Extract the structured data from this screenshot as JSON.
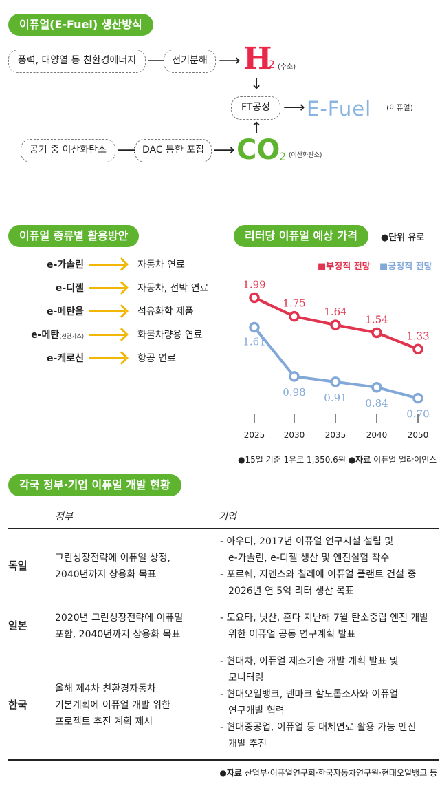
{
  "section1": {
    "title": "이퓨얼(E-Fuel) 생산방식",
    "box_energy": "풍력, 태양열 등 친환경에너지",
    "box_electrolysis": "전기분해",
    "h2_main": "H",
    "h2_sub": "2",
    "h2_label": "(수소)",
    "box_ft": "FT공정",
    "efuel_main": "E-Fuel",
    "efuel_label": "(이퓨얼)",
    "box_air": "공기 중 이산화탄소",
    "box_dac": "DAC 통한 포집",
    "co2_main": "CO",
    "co2_sub": "2",
    "co2_label": "(이산화탄소)"
  },
  "section2": {
    "title": "이퓨얼 종류별 활용방안",
    "items": [
      {
        "name": "e-가솔린",
        "name_small": "",
        "use": "자동차 연료"
      },
      {
        "name": "e-디젤",
        "name_small": "",
        "use": "자동차, 선박 연료"
      },
      {
        "name": "e-메탄올",
        "name_small": "",
        "use": "석유화학 제품"
      },
      {
        "name": "e-메탄",
        "name_small": "(천연가스)",
        "use": "화물차량용 연료"
      },
      {
        "name": "e-케로신",
        "name_small": "",
        "use": "항공 연료"
      }
    ]
  },
  "section3": {
    "title": "리터당 이퓨얼 예상 가격",
    "unit_prefix": "●단위",
    "unit_value": " 유로"
  },
  "chart_data": {
    "type": "line",
    "title": "리터당 이퓨얼 예상 가격",
    "x": [
      "2025",
      "2030",
      "2035",
      "2040",
      "2050"
    ],
    "series": [
      {
        "name": "부정적 전망",
        "values": [
          1.99,
          1.75,
          1.64,
          1.54,
          1.33
        ],
        "color": "#e0344f"
      },
      {
        "name": "긍정적 전망",
        "values": [
          1.61,
          0.98,
          0.91,
          0.84,
          0.7
        ],
        "color": "#82a8d8"
      }
    ],
    "legend_markers": [
      "■",
      "■"
    ],
    "ylim": [
      0.6,
      2.1
    ],
    "grid": false,
    "legend_position": "top-right",
    "source_note_prefix": "●15일 기준 1유로 1,350.6원  ",
    "source_label": "●자료",
    "source_value": " 이퓨얼 얼라이언스"
  },
  "section4": {
    "title": "각국 정부·기업 이퓨얼 개발 현황",
    "col_gov": "정부",
    "col_corp": "기업",
    "rows": [
      {
        "country": "독일",
        "gov": [
          "그린성장전략에 이퓨얼 상정,",
          "2040년까지 상용화 목표"
        ],
        "corp": [
          "- 아우디, 2017년 이퓨얼 연구시설 설립 및",
          "e-가솔린, e-디젤 생산 및 엔진실험 착수",
          "- 포르쉐, 지멘스와 칠레에 이퓨얼 플랜트 건설 중",
          "2026년 연 5억 리터 생산 목표"
        ]
      },
      {
        "country": "일본",
        "gov": [
          "2020년 그린성장전략에 이퓨얼",
          "포함, 2040년까지 상용화 목표"
        ],
        "corp": [
          "- 도요타, 닛산, 혼다 지난해 7월 탄소중립 엔진 개발",
          "위한 이퓨얼 공동 연구계획 발표"
        ]
      },
      {
        "country": "한국",
        "gov": [
          "올해 제4차 친환경자동차",
          "기본계획에 이퓨얼 개발 위한",
          "프로젝트 추진 계획 제시"
        ],
        "corp": [
          "- 현대차, 이퓨얼 제조기술 개발 계획 발표 및",
          "모니터링",
          "- 현대오일뱅크, 덴마크 할도톱소사와 이퓨얼",
          "연구개발 협력",
          "- 현대중공업, 이퓨얼 등 대체연료 활용 가능 엔진",
          "개발 추진"
        ]
      }
    ],
    "source_label": "●자료",
    "source_value": " 산업부·이퓨얼연구회·한국자동차연구원·현대오일뱅크 등"
  }
}
